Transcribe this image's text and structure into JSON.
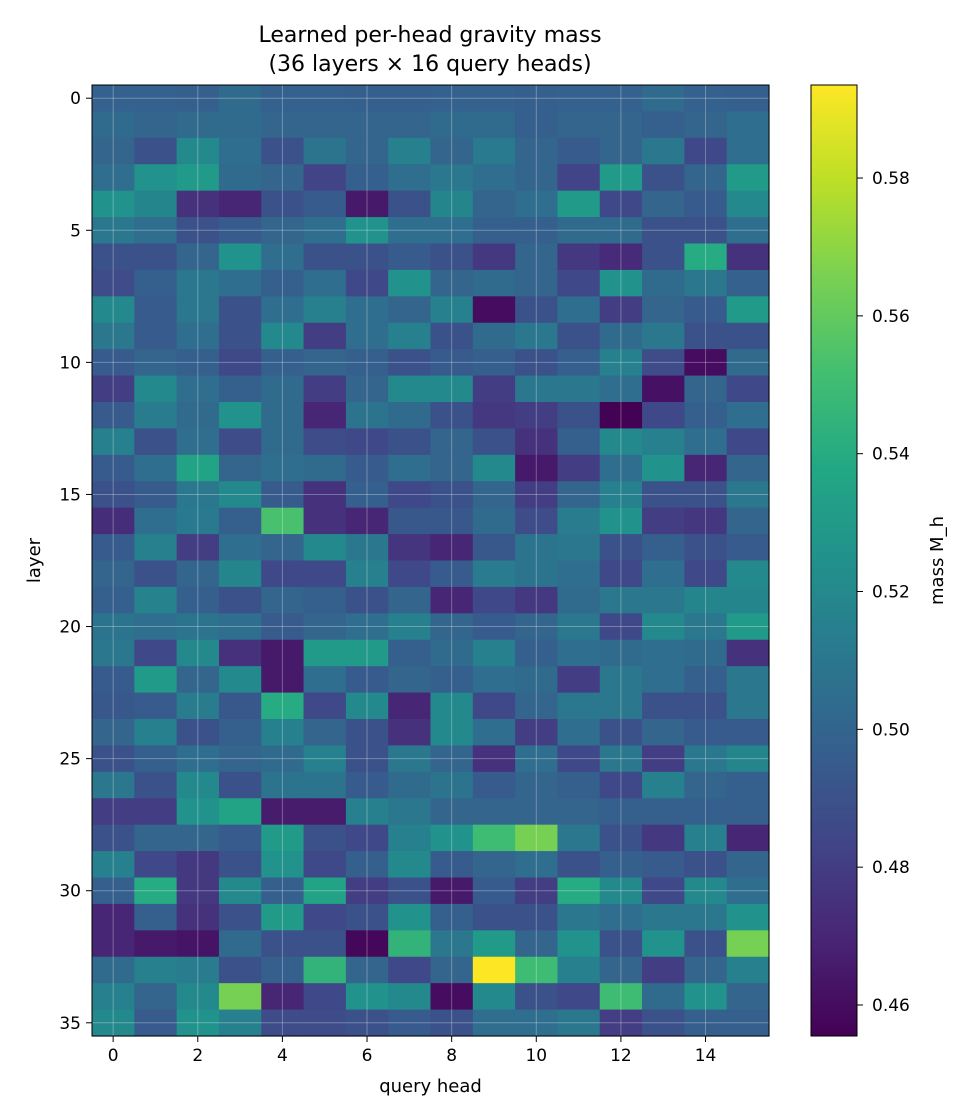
{
  "chart_data": {
    "type": "heatmap",
    "title": "Learned per-head gravity mass\n(36 layers × 16 query heads)",
    "xlabel": "query head",
    "ylabel": "layer",
    "colorbar_label": "mass M_h",
    "colormap": "viridis",
    "vmin": 0.4555,
    "vmax": 0.5935,
    "x_ticks": [
      0,
      2,
      4,
      6,
      8,
      10,
      12,
      14
    ],
    "y_ticks": [
      0,
      5,
      10,
      15,
      20,
      25,
      30,
      35
    ],
    "colorbar_ticks": [
      0.46,
      0.48,
      0.5,
      0.52,
      0.54,
      0.56,
      0.58
    ],
    "grid": true,
    "n_rows": 36,
    "n_cols": 16,
    "values": [
      [
        0.498,
        0.498,
        0.497,
        0.503,
        0.498,
        0.498,
        0.497,
        0.497,
        0.498,
        0.498,
        0.497,
        0.498,
        0.498,
        0.503,
        0.498,
        0.497
      ],
      [
        0.503,
        0.5,
        0.503,
        0.503,
        0.5,
        0.5,
        0.5,
        0.5,
        0.503,
        0.503,
        0.497,
        0.5,
        0.5,
        0.497,
        0.5,
        0.505
      ],
      [
        0.5,
        0.49,
        0.52,
        0.505,
        0.49,
        0.508,
        0.5,
        0.515,
        0.5,
        0.512,
        0.5,
        0.495,
        0.5,
        0.51,
        0.485,
        0.505
      ],
      [
        0.505,
        0.525,
        0.53,
        0.503,
        0.5,
        0.483,
        0.497,
        0.505,
        0.51,
        0.505,
        0.5,
        0.483,
        0.53,
        0.49,
        0.5,
        0.53
      ],
      [
        0.525,
        0.518,
        0.475,
        0.47,
        0.49,
        0.495,
        0.465,
        0.49,
        0.518,
        0.5,
        0.505,
        0.53,
        0.485,
        0.5,
        0.495,
        0.52
      ],
      [
        0.51,
        0.505,
        0.49,
        0.495,
        0.5,
        0.505,
        0.525,
        0.505,
        0.505,
        0.497,
        0.497,
        0.503,
        0.503,
        0.49,
        0.49,
        0.505
      ],
      [
        0.49,
        0.49,
        0.5,
        0.525,
        0.505,
        0.49,
        0.49,
        0.495,
        0.49,
        0.478,
        0.5,
        0.478,
        0.472,
        0.49,
        0.54,
        0.475
      ],
      [
        0.487,
        0.497,
        0.51,
        0.505,
        0.497,
        0.505,
        0.485,
        0.525,
        0.5,
        0.503,
        0.5,
        0.485,
        0.525,
        0.503,
        0.51,
        0.498
      ],
      [
        0.52,
        0.495,
        0.51,
        0.49,
        0.505,
        0.515,
        0.505,
        0.5,
        0.515,
        0.46,
        0.49,
        0.505,
        0.48,
        0.5,
        0.495,
        0.53
      ],
      [
        0.51,
        0.495,
        0.505,
        0.49,
        0.52,
        0.48,
        0.505,
        0.515,
        0.49,
        0.503,
        0.51,
        0.49,
        0.503,
        0.51,
        0.49,
        0.49
      ],
      [
        0.495,
        0.5,
        0.497,
        0.485,
        0.497,
        0.5,
        0.497,
        0.49,
        0.495,
        0.497,
        0.49,
        0.497,
        0.515,
        0.487,
        0.46,
        0.503
      ],
      [
        0.48,
        0.52,
        0.505,
        0.497,
        0.503,
        0.48,
        0.5,
        0.52,
        0.52,
        0.48,
        0.51,
        0.51,
        0.505,
        0.462,
        0.5,
        0.485
      ],
      [
        0.495,
        0.513,
        0.503,
        0.525,
        0.503,
        0.47,
        0.508,
        0.503,
        0.49,
        0.478,
        0.48,
        0.49,
        0.456,
        0.485,
        0.497,
        0.505
      ],
      [
        0.515,
        0.49,
        0.505,
        0.487,
        0.503,
        0.487,
        0.485,
        0.49,
        0.5,
        0.49,
        0.475,
        0.497,
        0.52,
        0.515,
        0.505,
        0.485
      ],
      [
        0.495,
        0.505,
        0.535,
        0.5,
        0.505,
        0.503,
        0.495,
        0.505,
        0.5,
        0.52,
        0.465,
        0.48,
        0.505,
        0.525,
        0.47,
        0.5
      ],
      [
        0.49,
        0.495,
        0.51,
        0.52,
        0.495,
        0.475,
        0.497,
        0.485,
        0.49,
        0.5,
        0.48,
        0.5,
        0.515,
        0.49,
        0.49,
        0.51
      ],
      [
        0.473,
        0.505,
        0.512,
        0.497,
        0.553,
        0.475,
        0.47,
        0.493,
        0.493,
        0.503,
        0.487,
        0.513,
        0.525,
        0.48,
        0.477,
        0.5
      ],
      [
        0.495,
        0.515,
        0.48,
        0.505,
        0.5,
        0.52,
        0.51,
        0.476,
        0.47,
        0.493,
        0.508,
        0.51,
        0.49,
        0.497,
        0.49,
        0.495
      ],
      [
        0.5,
        0.49,
        0.5,
        0.518,
        0.485,
        0.485,
        0.515,
        0.485,
        0.495,
        0.513,
        0.508,
        0.505,
        0.485,
        0.505,
        0.485,
        0.52
      ],
      [
        0.497,
        0.517,
        0.497,
        0.49,
        0.5,
        0.497,
        0.49,
        0.5,
        0.47,
        0.485,
        0.478,
        0.503,
        0.51,
        0.51,
        0.518,
        0.518
      ],
      [
        0.508,
        0.505,
        0.508,
        0.505,
        0.495,
        0.5,
        0.505,
        0.515,
        0.5,
        0.495,
        0.5,
        0.51,
        0.485,
        0.52,
        0.51,
        0.53
      ],
      [
        0.51,
        0.485,
        0.52,
        0.475,
        0.465,
        0.53,
        0.53,
        0.497,
        0.503,
        0.515,
        0.497,
        0.505,
        0.503,
        0.505,
        0.503,
        0.475
      ],
      [
        0.495,
        0.53,
        0.5,
        0.52,
        0.465,
        0.505,
        0.495,
        0.5,
        0.497,
        0.505,
        0.503,
        0.48,
        0.51,
        0.505,
        0.497,
        0.51
      ],
      [
        0.493,
        0.495,
        0.513,
        0.493,
        0.54,
        0.485,
        0.52,
        0.47,
        0.52,
        0.485,
        0.5,
        0.51,
        0.51,
        0.49,
        0.49,
        0.51
      ],
      [
        0.5,
        0.515,
        0.49,
        0.497,
        0.515,
        0.5,
        0.49,
        0.475,
        0.52,
        0.505,
        0.48,
        0.505,
        0.49,
        0.5,
        0.495,
        0.495
      ],
      [
        0.49,
        0.497,
        0.505,
        0.5,
        0.503,
        0.515,
        0.49,
        0.51,
        0.5,
        0.475,
        0.505,
        0.485,
        0.51,
        0.48,
        0.51,
        0.518
      ],
      [
        0.51,
        0.49,
        0.52,
        0.49,
        0.508,
        0.508,
        0.495,
        0.503,
        0.508,
        0.495,
        0.5,
        0.497,
        0.485,
        0.515,
        0.5,
        0.497
      ],
      [
        0.48,
        0.48,
        0.525,
        0.535,
        0.466,
        0.466,
        0.515,
        0.51,
        0.5,
        0.5,
        0.5,
        0.5,
        0.497,
        0.497,
        0.497,
        0.497
      ],
      [
        0.49,
        0.5,
        0.5,
        0.495,
        0.53,
        0.49,
        0.485,
        0.515,
        0.525,
        0.55,
        0.565,
        0.51,
        0.49,
        0.478,
        0.515,
        0.47
      ],
      [
        0.515,
        0.485,
        0.478,
        0.49,
        0.525,
        0.485,
        0.497,
        0.52,
        0.495,
        0.5,
        0.505,
        0.49,
        0.497,
        0.495,
        0.49,
        0.5
      ],
      [
        0.497,
        0.54,
        0.478,
        0.52,
        0.497,
        0.535,
        0.48,
        0.49,
        0.465,
        0.495,
        0.48,
        0.54,
        0.52,
        0.485,
        0.52,
        0.505
      ],
      [
        0.47,
        0.497,
        0.475,
        0.49,
        0.53,
        0.485,
        0.49,
        0.525,
        0.497,
        0.49,
        0.49,
        0.51,
        0.505,
        0.51,
        0.51,
        0.525
      ],
      [
        0.47,
        0.465,
        0.463,
        0.503,
        0.49,
        0.49,
        0.458,
        0.545,
        0.51,
        0.53,
        0.5,
        0.525,
        0.49,
        0.525,
        0.49,
        0.565
      ],
      [
        0.503,
        0.515,
        0.513,
        0.49,
        0.497,
        0.545,
        0.5,
        0.485,
        0.5,
        0.594,
        0.55,
        0.515,
        0.5,
        0.48,
        0.5,
        0.515
      ],
      [
        0.515,
        0.5,
        0.52,
        0.565,
        0.47,
        0.485,
        0.525,
        0.52,
        0.46,
        0.52,
        0.49,
        0.485,
        0.55,
        0.503,
        0.525,
        0.5
      ],
      [
        0.52,
        0.495,
        0.525,
        0.515,
        0.487,
        0.487,
        0.49,
        0.495,
        0.49,
        0.505,
        0.505,
        0.51,
        0.48,
        0.49,
        0.497,
        0.497
      ]
    ]
  }
}
